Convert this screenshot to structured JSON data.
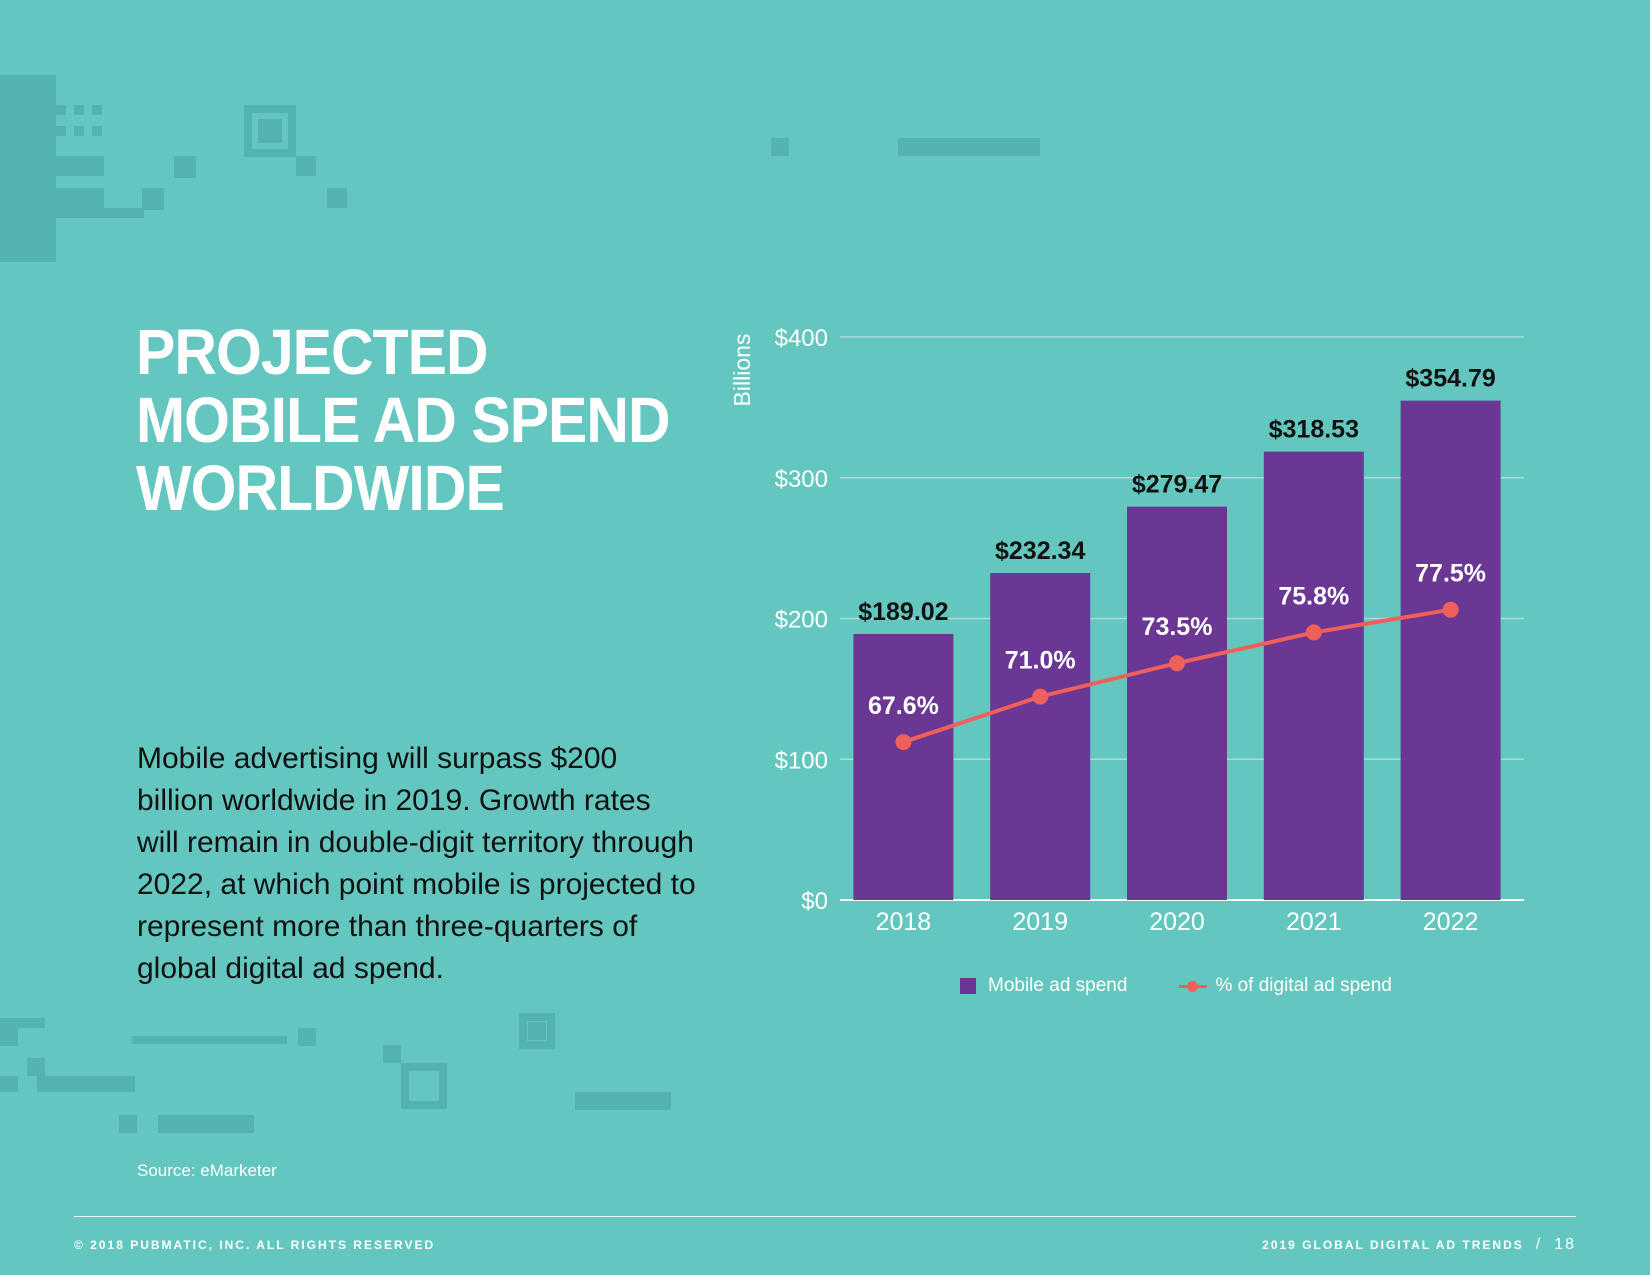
{
  "title_lines": [
    "PROJECTED",
    "MOBILE AD SPEND",
    "WORLDWIDE"
  ],
  "body": "Mobile advertising will surpass $200 billion worldwide in 2019. Growth rates will remain in double-digit territory through 2022, at which point mobile is projected to represent more than three-quarters of global digital ad spend.",
  "source": "Source: eMarketer",
  "footer": {
    "copyright": "© 2018 PUBMATIC, INC. ALL RIGHTS RESERVED",
    "report": "2019 GLOBAL DIGITAL AD TRENDS",
    "separator": "/",
    "page": "18"
  },
  "colors": {
    "background": "#63c6bf",
    "bar": "#6b3794",
    "line": "#f0605a",
    "grid": "#a8dcd8"
  },
  "chart_data": {
    "type": "bar",
    "categories": [
      "2018",
      "2019",
      "2020",
      "2021",
      "2022"
    ],
    "ylabel": "Billions",
    "ylim": [
      0,
      400
    ],
    "yticks": [
      0,
      100,
      200,
      300,
      400
    ],
    "ytick_labels": [
      "$0",
      "$100",
      "$200",
      "$300",
      "$400"
    ],
    "grid": true,
    "legend_position": "bottom",
    "series": [
      {
        "name": "Mobile ad spend",
        "type": "bar",
        "values": [
          189.02,
          232.34,
          279.47,
          318.53,
          354.79
        ],
        "labels": [
          "$189.02",
          "$232.34",
          "$279.47",
          "$318.53",
          "$354.79"
        ]
      },
      {
        "name": "% of digital ad spend",
        "type": "line",
        "values": [
          67.6,
          71.0,
          73.5,
          75.8,
          77.5
        ],
        "labels": [
          "67.6%",
          "71.0%",
          "73.5%",
          "75.8%",
          "77.5%"
        ]
      }
    ]
  }
}
